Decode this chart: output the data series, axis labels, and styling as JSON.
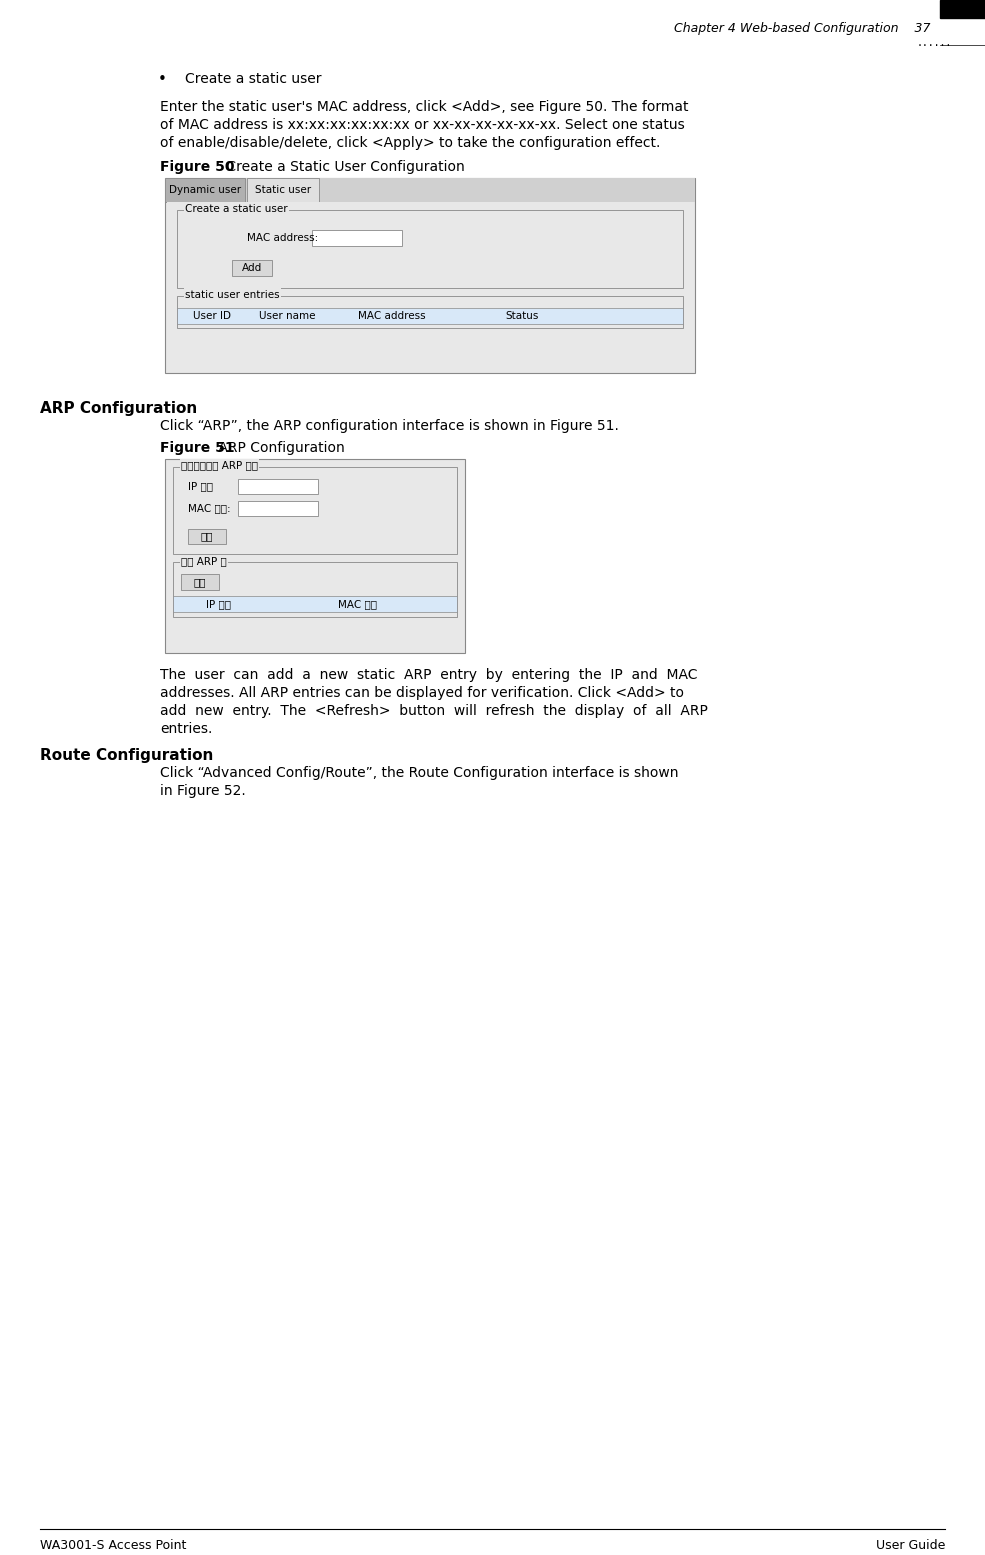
{
  "bg_color": "#ffffff",
  "header_text": "Chapter 4 Web-based Configuration    37",
  "footer_left": "WA3001-S Access Point",
  "footer_right": "User Guide",
  "bullet_text": "Create a static user",
  "para1": "Enter the static user's MAC address, click <Add>, see Figure 50. The format\nof MAC address is xx:xx:xx:xx:xx:xx or xx-xx-xx-xx-xx-xx. Select one status\nof enable/disable/delete, click <Apply> to take the configuration effect.",
  "fig50_label": "Figure 50",
  "fig50_title": " Create a Static User Configuration",
  "fig50_tab1": "Dynamic user",
  "fig50_tab2": "Static user",
  "fig50_group1": "Create a static user",
  "fig50_mac_label": "MAC address:",
  "fig50_add_btn": "Add",
  "fig50_group2": "static user entries",
  "fig50_col1": "User ID",
  "fig50_col2": "User name",
  "fig50_col3": "MAC address",
  "fig50_col4": "Status",
  "arp_section": "ARP Configuration",
  "arp_para": "Click “ARP”, the ARP configuration interface is shown in Figure 51.",
  "fig51_label": "Figure 51",
  "fig51_title": " ARP Configuration",
  "fig51_group1": "添加一个新的 ARP 条目",
  "fig51_ip_label": "IP 地址",
  "fig51_mac_label": "MAC 地址:",
  "fig51_add_btn": "添加",
  "fig51_group2": "静态 ARP 表",
  "fig51_refresh_btn": "刷新",
  "fig51_col1": "IP 地址",
  "fig51_col2": "MAC 地址",
  "arp_desc": "The  user  can  add  a  new  static  ARP  entry  by  entering  the  IP  and  MAC\naddresses. All ARP entries can be displayed for verification. Click <Add> to\nadd  new  entry.  The  <Refresh>  button  will  refresh  the  display  of  all  ARP\nentries.",
  "route_section": "Route Configuration",
  "route_para": "Click “Advanced Config/Route”, the Route Configuration interface is shown\nin Figure 52."
}
